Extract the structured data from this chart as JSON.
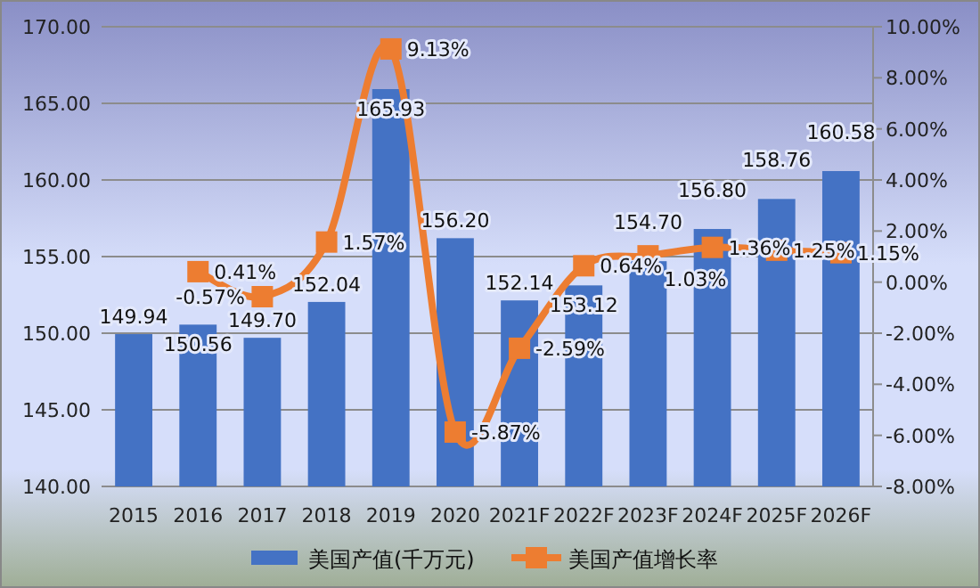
{
  "chart_data": {
    "type": "bar",
    "categories": [
      "2015",
      "2016",
      "2017",
      "2018",
      "2019",
      "2020",
      "2021F",
      "2022F",
      "2023F",
      "2024F",
      "2025F",
      "2026F"
    ],
    "series": [
      {
        "name": "美国产值(千万元)",
        "color": "#4472c4",
        "values": [
          149.94,
          150.56,
          149.7,
          152.04,
          165.93,
          156.2,
          152.14,
          153.12,
          154.7,
          156.8,
          158.76,
          160.58
        ],
        "value_labels": [
          "149.94",
          "150.56",
          "149.70",
          "152.04",
          "165.93",
          "156.20",
          "152.14",
          "153.12",
          "154.70",
          "156.80",
          "158.76",
          "160.58"
        ]
      },
      {
        "name": "美国产值增长率",
        "type": "line",
        "axis": "y2",
        "color": "#ed7d31",
        "marker": "square",
        "values": [
          null,
          0.41,
          -0.57,
          1.57,
          9.13,
          -5.87,
          -2.59,
          0.64,
          1.03,
          1.36,
          1.25,
          1.15
        ],
        "value_labels": [
          null,
          "0.41%",
          "-0.57%",
          "1.57%",
          "9.13%",
          "-5.87%",
          "-2.59%",
          "0.64%",
          "1.03%",
          "1.36%",
          "1.25%",
          "1.15%"
        ]
      }
    ],
    "ylim": [
      140,
      170
    ],
    "yticks": [
      {
        "value": 140,
        "label": "140.00"
      },
      {
        "value": 145,
        "label": "145.00"
      },
      {
        "value": 150,
        "label": "150.00"
      },
      {
        "value": 155,
        "label": "155.00"
      },
      {
        "value": 160,
        "label": "160.00"
      },
      {
        "value": 165,
        "label": "165.00"
      },
      {
        "value": 170,
        "label": "170.00"
      }
    ],
    "y2lim": [
      -8,
      10
    ],
    "y2ticks": [
      {
        "value": -8,
        "label": "-8.00%"
      },
      {
        "value": -6,
        "label": "-6.00%"
      },
      {
        "value": -4,
        "label": "-4.00%"
      },
      {
        "value": -2,
        "label": "-2.00%"
      },
      {
        "value": 0,
        "label": "0.00%"
      },
      {
        "value": 2,
        "label": "2.00%"
      },
      {
        "value": 4,
        "label": "4.00%"
      },
      {
        "value": 6,
        "label": "6.00%"
      },
      {
        "value": 8,
        "label": "8.00%"
      },
      {
        "value": 10,
        "label": "10.00%"
      }
    ],
    "grid": "y",
    "legend": "bottom"
  }
}
